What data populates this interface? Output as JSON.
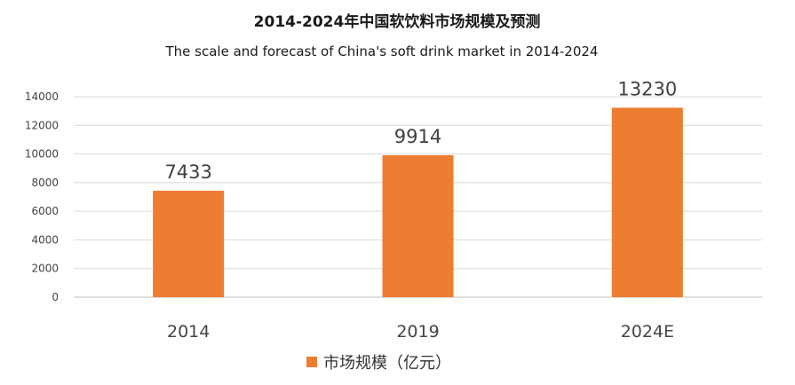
{
  "chart_data": {
    "type": "bar",
    "title": "2014-2024年中国软饮料市场规模及预测",
    "subtitle": "The scale and forecast of China's soft drink market in 2014-2024",
    "categories": [
      "2014",
      "2019",
      "2024E"
    ],
    "series": [
      {
        "name": "市场规模（亿元）",
        "values": [
          7433,
          9914,
          13230
        ],
        "color": "#ED7D31"
      }
    ],
    "data_labels": [
      "7433",
      "9914",
      "13230"
    ],
    "ylim": [
      0,
      14000
    ],
    "yticks": [
      0,
      2000,
      4000,
      6000,
      8000,
      10000,
      12000,
      14000
    ],
    "xlabel": "",
    "ylabel": "",
    "grid": true,
    "legend_position": "bottom"
  }
}
